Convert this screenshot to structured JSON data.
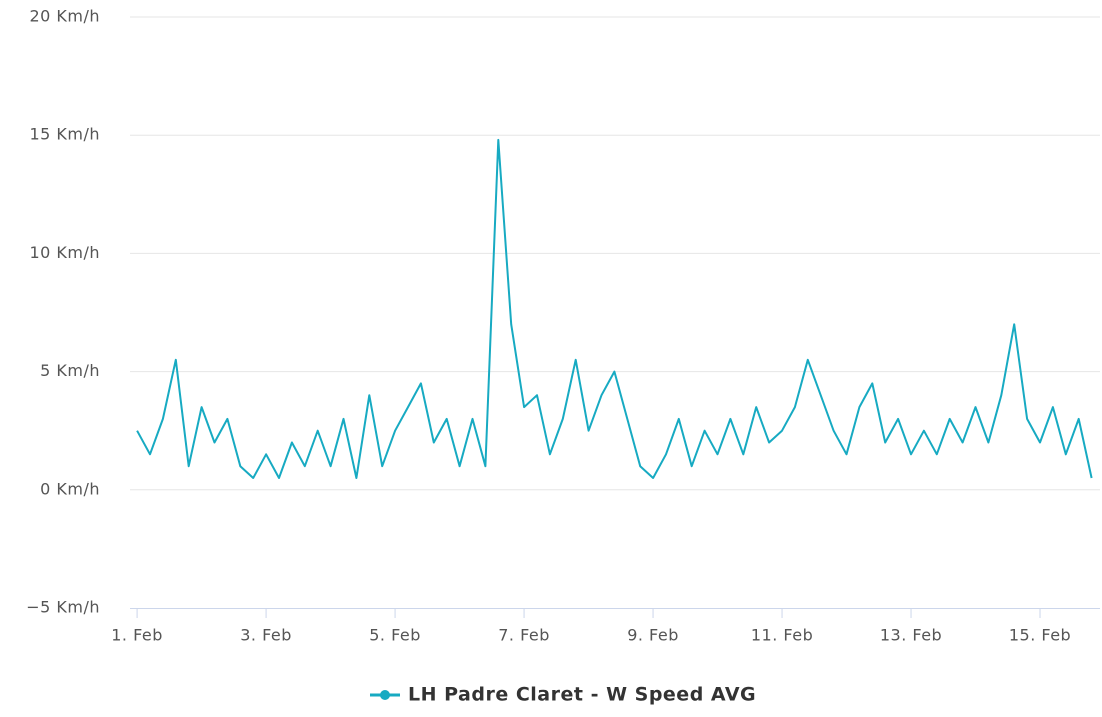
{
  "chart_data": {
    "type": "line",
    "x": [
      1.0,
      1.2,
      1.4,
      1.6,
      1.8,
      2.0,
      2.2,
      2.4,
      2.6,
      2.8,
      3.0,
      3.2,
      3.4,
      3.6,
      3.8,
      4.0,
      4.2,
      4.4,
      4.6,
      4.8,
      5.0,
      5.2,
      5.4,
      5.6,
      5.8,
      6.0,
      6.2,
      6.4,
      6.6,
      6.8,
      7.0,
      7.2,
      7.4,
      7.6,
      7.8,
      8.0,
      8.2,
      8.4,
      8.6,
      8.8,
      9.0,
      9.2,
      9.4,
      9.6,
      9.8,
      10.0,
      10.2,
      10.4,
      10.6,
      10.8,
      11.0,
      11.2,
      11.4,
      11.6,
      11.8,
      12.0,
      12.2,
      12.4,
      12.6,
      12.8,
      13.0,
      13.2,
      13.4,
      13.6,
      13.8,
      14.0,
      14.2,
      14.4,
      14.6,
      14.8,
      15.0,
      15.2,
      15.4,
      15.6,
      15.8
    ],
    "series": [
      {
        "name": "LH Padre Claret - W Speed AVG",
        "color": "#17aac2",
        "values": [
          2.5,
          1.5,
          3,
          5.5,
          1,
          3.5,
          2,
          3,
          1,
          0.5,
          1.5,
          0.5,
          2,
          1,
          2.5,
          1,
          3,
          0.5,
          4,
          1,
          2.5,
          3.5,
          4.5,
          2,
          3,
          1,
          3,
          1,
          14.8,
          7,
          3.5,
          4,
          1.5,
          3,
          5.5,
          2.5,
          4,
          5,
          3,
          1,
          0.5,
          1.5,
          3,
          1,
          2.5,
          1.5,
          3,
          1.5,
          3.5,
          2,
          2.5,
          3.5,
          5.5,
          4,
          2.5,
          1.5,
          3.5,
          4.5,
          2,
          3,
          1.5,
          2.5,
          1.5,
          3,
          2,
          3.5,
          2,
          4,
          7,
          3,
          2,
          3.5,
          1.5,
          3,
          0.5
        ]
      }
    ],
    "xlim": [
      0.89,
      15.93
    ],
    "xticks": [
      {
        "value": 1,
        "label": "1. Feb"
      },
      {
        "value": 3,
        "label": "3. Feb"
      },
      {
        "value": 5,
        "label": "5. Feb"
      },
      {
        "value": 7,
        "label": "7. Feb"
      },
      {
        "value": 9,
        "label": "9. Feb"
      },
      {
        "value": 11,
        "label": "11. Feb"
      },
      {
        "value": 13,
        "label": "13. Feb"
      },
      {
        "value": 15,
        "label": "15. Feb"
      }
    ],
    "ylim": [
      -5,
      20
    ],
    "yticks": [
      {
        "value": -5,
        "label": "−5 Km/h"
      },
      {
        "value": 0,
        "label": "0 Km/h"
      },
      {
        "value": 5,
        "label": "5 Km/h"
      },
      {
        "value": 10,
        "label": "10 Km/h"
      },
      {
        "value": 15,
        "label": "15 Km/h"
      },
      {
        "value": 20,
        "label": "20 Km/h"
      }
    ],
    "grid": true
  }
}
